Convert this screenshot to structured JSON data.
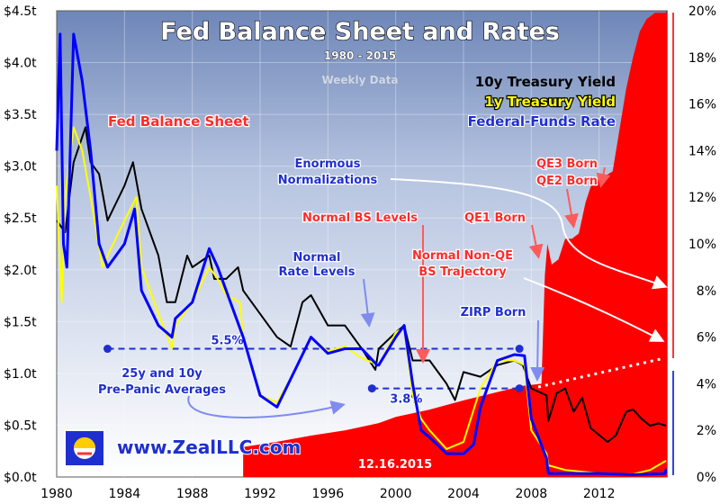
{
  "chart_data": {
    "type": "line",
    "title": "Fed Balance Sheet and Rates",
    "subtitle": "1980 - 2015",
    "note": "Weekly Data",
    "date_stamp": "12.16.2015",
    "source_url": "www.ZealLLC.com",
    "left_axis": {
      "ticks": [
        "$0.0t",
        "$0.5t",
        "$1.0t",
        "$1.5t",
        "$2.0t",
        "$2.5t",
        "$3.0t",
        "$3.5t",
        "$4.0t",
        "$4.5t"
      ],
      "range": [
        0,
        4.5
      ]
    },
    "right_axis": {
      "ticks": [
        "0%",
        "2%",
        "4%",
        "6%",
        "8%",
        "10%",
        "12%",
        "14%",
        "16%",
        "18%",
        "20%"
      ],
      "range": [
        0,
        20
      ]
    },
    "x_axis": {
      "ticks": [
        "1980",
        "1984",
        "1988",
        "1992",
        "1996",
        "2000",
        "2004",
        "2008",
        "2012"
      ],
      "range": [
        1980,
        2016
      ]
    },
    "legend": [
      {
        "name": "10y Treasury Yield",
        "color": "#000000"
      },
      {
        "name": "1y Treasury Yield",
        "color": "#ffff00"
      },
      {
        "name": "Federal-Funds Rate",
        "color": "#0000ff"
      }
    ],
    "balance_sheet_label": "Fed Balance Sheet",
    "balance_sheet_color": "#ff0000",
    "balance_sheet": {
      "name": "Fed Balance Sheet",
      "x": [
        1991.0,
        1993,
        1995,
        1997,
        1999,
        2000,
        2002,
        2004,
        2006,
        2007.5,
        2008.6,
        2008.8,
        2008.95,
        2009.2,
        2009.6,
        2010,
        2010.4,
        2010.8,
        2011.2,
        2011.6,
        2012.3,
        2012.8,
        2013.2,
        2013.6,
        2014.0,
        2014.4,
        2014.8,
        2015.3,
        2016.0
      ],
      "y": [
        0.29,
        0.34,
        0.4,
        0.45,
        0.52,
        0.58,
        0.65,
        0.74,
        0.82,
        0.88,
        0.9,
        1.95,
        2.25,
        2.05,
        2.1,
        2.3,
        2.3,
        2.35,
        2.65,
        2.85,
        2.9,
        2.95,
        3.35,
        3.75,
        4.05,
        4.3,
        4.42,
        4.48,
        4.48
      ]
    },
    "series": [
      {
        "name": "10y Treasury Yield",
        "x": [
          1980,
          1980.5,
          1981,
          1981.7,
          1982,
          1982.5,
          1983,
          1984,
          1984.5,
          1985,
          1985.5,
          1986,
          1986.5,
          1987,
          1987.7,
          1988,
          1989,
          1989.3,
          1990,
          1990.7,
          1991,
          1992,
          1993,
          1993.8,
          1994.5,
          1995,
          1996,
          1997,
          1998,
          1998.8,
          1999,
          2000,
          2000.5,
          2001,
          2002,
          2003,
          2003.5,
          2004,
          2005,
          2006,
          2007,
          2007.5,
          2008,
          2008.9,
          2009,
          2009.5,
          2010,
          2010.5,
          2011,
          2011.5,
          2012,
          2012.5,
          2013,
          2013.6,
          2014,
          2014.5,
          2015,
          2015.5,
          2015.95
        ],
        "y": [
          11.0,
          10.5,
          13.5,
          15.0,
          13.5,
          13.0,
          11.0,
          12.5,
          13.5,
          11.5,
          10.5,
          9.5,
          7.5,
          7.5,
          9.5,
          9.0,
          9.5,
          8.5,
          8.5,
          9.0,
          8.0,
          7.0,
          6.0,
          5.6,
          7.5,
          7.8,
          6.5,
          6.5,
          5.5,
          4.6,
          5.5,
          6.2,
          6.5,
          5.0,
          5.0,
          4.0,
          3.3,
          4.5,
          4.3,
          4.8,
          5.0,
          4.8,
          3.8,
          3.5,
          2.4,
          3.6,
          3.8,
          2.8,
          3.4,
          2.1,
          1.8,
          1.5,
          1.8,
          2.8,
          2.9,
          2.5,
          2.2,
          2.3,
          2.2
        ]
      },
      {
        "name": "1y Treasury Yield",
        "x": [
          1980,
          1980.3,
          1980.5,
          1981,
          1981.5,
          1982,
          1982.7,
          1983,
          1984,
          1984.7,
          1985,
          1986,
          1986.8,
          1987,
          1988,
          1989,
          1989.5,
          1990,
          1990.8,
          1991,
          1992,
          1993,
          1994,
          1995,
          1996,
          1997,
          1998,
          1999,
          2000,
          2000.5,
          2001,
          2001.5,
          2002,
          2003,
          2004,
          2005,
          2006,
          2007,
          2007.6,
          2008,
          2008.9,
          2009,
          2010,
          2012,
          2014,
          2015,
          2015.95
        ],
        "y": [
          12.5,
          7.5,
          12.0,
          15.0,
          14.0,
          12.0,
          9.0,
          9.5,
          11.0,
          12.0,
          9.0,
          7.0,
          5.5,
          6.5,
          7.5,
          9.0,
          8.5,
          7.8,
          7.5,
          6.0,
          3.5,
          3.2,
          4.5,
          6.0,
          5.4,
          5.6,
          5.1,
          4.8,
          6.2,
          6.4,
          3.5,
          2.5,
          2.0,
          1.2,
          1.5,
          3.8,
          5.0,
          5.0,
          4.8,
          2.0,
          1.0,
          0.5,
          0.3,
          0.15,
          0.12,
          0.3,
          0.7
        ]
      },
      {
        "name": "Federal-Funds Rate",
        "x": [
          1980,
          1980.2,
          1980.4,
          1980.6,
          1981,
          1981.5,
          1982,
          1982.5,
          1983,
          1984,
          1984.6,
          1985,
          1986,
          1986.8,
          1987,
          1988,
          1989,
          1989.5,
          1990,
          1991,
          1992,
          1993,
          1994,
          1995,
          1996,
          1997,
          1998,
          1998.9,
          1999,
          2000,
          2000.5,
          2001,
          2001.5,
          2002,
          2003,
          2004,
          2004.6,
          2005,
          2006,
          2007,
          2007.6,
          2008,
          2008.9,
          2009,
          2012,
          2014,
          2015.9,
          2015.95
        ],
        "y": [
          14.0,
          19.0,
          10.0,
          9.0,
          19.0,
          17.0,
          14.0,
          10.0,
          9.0,
          10.0,
          11.5,
          8.0,
          6.5,
          6.0,
          6.8,
          7.5,
          9.8,
          9.0,
          8.0,
          6.0,
          3.5,
          3.0,
          4.5,
          6.0,
          5.3,
          5.5,
          5.5,
          4.8,
          4.8,
          6.0,
          6.5,
          4.0,
          2.0,
          1.7,
          1.0,
          1.0,
          1.4,
          3.0,
          5.0,
          5.25,
          5.2,
          2.5,
          0.8,
          0.15,
          0.15,
          0.1,
          0.15,
          0.35
        ]
      }
    ],
    "reference_lines": [
      {
        "label": "5.5%",
        "value": 5.5,
        "from": 1983,
        "to": 2007.3
      },
      {
        "label": "3.8%",
        "value": 3.8,
        "from": 1998.6,
        "to": 2007.3
      }
    ],
    "projection_label": "Normal Non-QE BS Trajectory",
    "annotations": {
      "enormous": "Enormous",
      "normalizations": "Normalizations",
      "qe3": "QE3 Born",
      "qe2": "QE2 Born",
      "qe1": "QE1 Born",
      "normal_bs_levels": "Normal BS Levels",
      "normal_non_qe": "Normal Non-QE",
      "bs_trajectory": "BS Trajectory",
      "normal": "Normal",
      "rate_levels": "Rate Levels",
      "zirp_born": "ZIRP Born",
      "averages_line1": "25y and 10y",
      "averages_line2": "Pre-Panic Averages"
    }
  }
}
